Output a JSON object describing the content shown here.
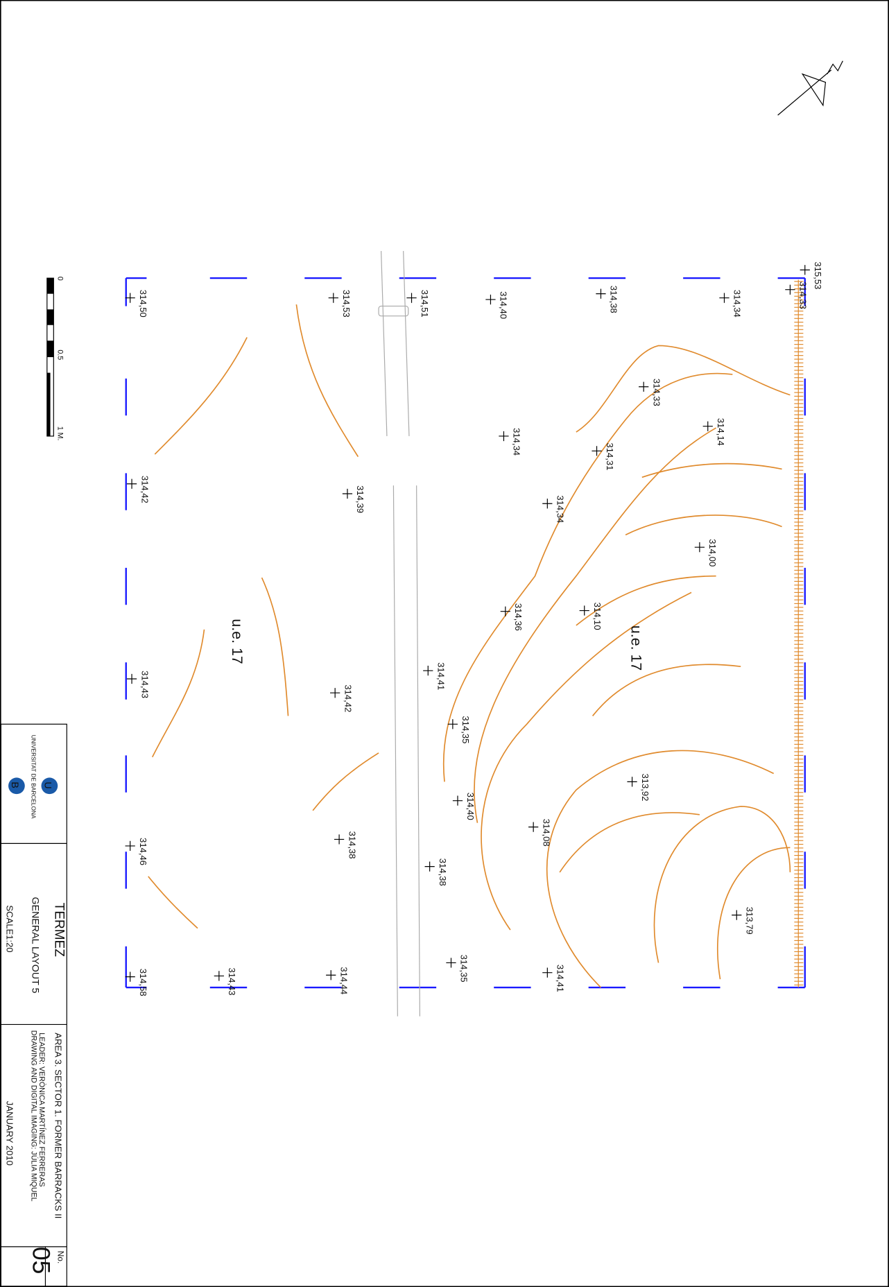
{
  "points": [
    {
      "label": "315,53"
    },
    {
      "label": "314,33"
    },
    {
      "label": "314,34"
    },
    {
      "label": "314,38"
    },
    {
      "label": "314,40"
    },
    {
      "label": "314,51"
    },
    {
      "label": "314,53"
    },
    {
      "label": "314,50"
    },
    {
      "label": "314,33"
    },
    {
      "label": "314,14"
    },
    {
      "label": "314,31"
    },
    {
      "label": "314,34"
    },
    {
      "label": "314,42"
    },
    {
      "label": "314,39"
    },
    {
      "label": "314,34"
    },
    {
      "label": "314,00"
    },
    {
      "label": "314,10"
    },
    {
      "label": "314,36"
    },
    {
      "label": "314,41"
    },
    {
      "label": "314,43"
    },
    {
      "label": "314,42"
    },
    {
      "label": "314,35"
    },
    {
      "label": "313,92"
    },
    {
      "label": "314,40"
    },
    {
      "label": "314,08"
    },
    {
      "label": "314,46"
    },
    {
      "label": "314,38"
    },
    {
      "label": "314,38"
    },
    {
      "label": "313,79"
    },
    {
      "label": "314,35"
    },
    {
      "label": "314,41"
    },
    {
      "label": "314,58"
    },
    {
      "label": "314,43"
    },
    {
      "label": "314,44"
    }
  ],
  "units": [
    "u.e. 17",
    "u.e. 17"
  ],
  "scale_bar": [
    "0",
    "0.5",
    "1 M."
  ],
  "title_block": {
    "logo_top": "U",
    "logo_bottom": "B",
    "university": "UNIVERSITAT DE BARCELONA",
    "site": "TERMEZ",
    "sheet": "GENERAL LAYOUT  5",
    "scale": "SCALE1:20",
    "area": "AREA 3. SECTOR 1. FORMER BARRACKS II",
    "leader": "LEADER: VERÒNICA MARTÍNEZ FERRERAS",
    "drawing": "DRAWING AND DIGITAL IMAGING: JÚLIA MIQUEL",
    "date": "JANUARY 2010",
    "no_label": "No.",
    "number": "05"
  }
}
